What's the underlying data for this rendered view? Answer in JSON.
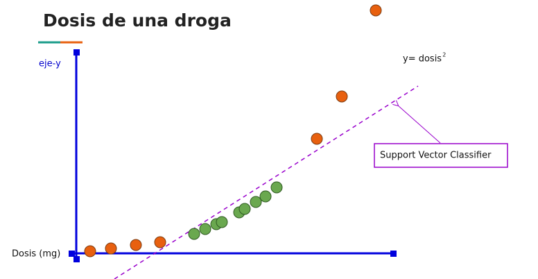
{
  "header": {
    "title": "Dosis de una droga"
  },
  "axes": {
    "y_label": "eje-y",
    "x_label": "Dosis (mg)"
  },
  "annotations": {
    "formula": "y= dosis",
    "formula_exponent": "2",
    "classifier": "Support Vector Classifier"
  }
}
